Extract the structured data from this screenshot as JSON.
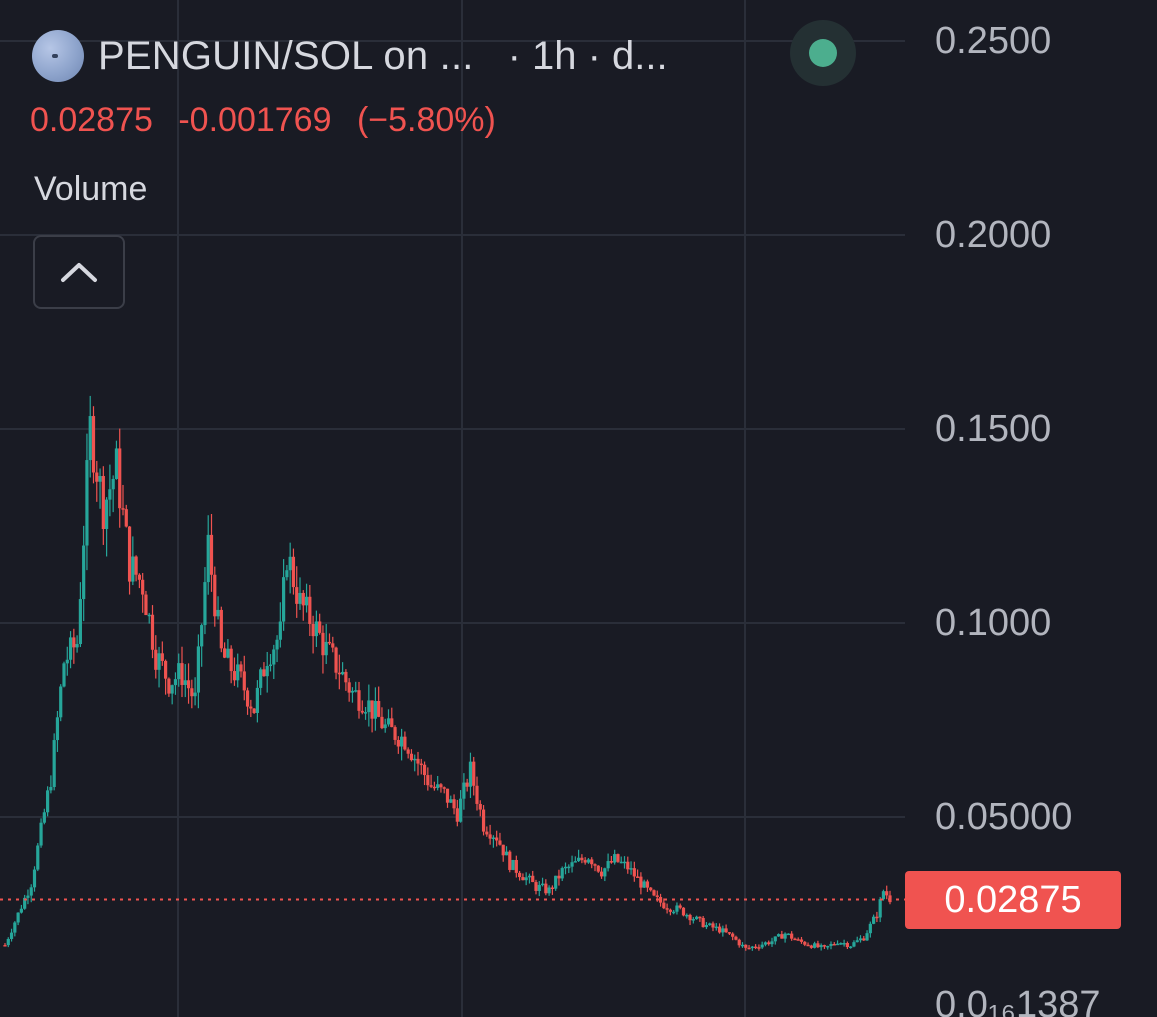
{
  "header": {
    "symbol": "PENGUIN/SOL on ...",
    "interval": "· 1h · d...",
    "live_indicator_color": "#4cae8e"
  },
  "quote": {
    "last": "0.02875",
    "change": "-0.001769",
    "change_pct": "(−5.80%)",
    "color": "#f05350"
  },
  "indicator": {
    "label": "Volume"
  },
  "price_axis": {
    "labels": [
      "0.2500",
      "0.2000",
      "0.1500",
      "0.1000",
      "0.05000",
      "0.0₁₆1387"
    ],
    "current_tag": "0.02875"
  },
  "chart_data": {
    "type": "candlestick",
    "ylim": [
      0.0,
      0.25
    ],
    "y_ticks": [
      0.25,
      0.2,
      0.15,
      0.1,
      0.05
    ],
    "current_price": 0.02875,
    "up_color": "#26a69a",
    "down_color": "#ef5350",
    "grid": true,
    "close_path": [
      [
        0,
        0.017
      ],
      [
        4,
        0.033
      ],
      [
        7,
        0.06
      ],
      [
        9,
        0.09
      ],
      [
        11,
        0.095
      ],
      [
        13,
        0.15
      ],
      [
        15,
        0.13
      ],
      [
        17,
        0.14
      ],
      [
        19,
        0.115
      ],
      [
        21,
        0.11
      ],
      [
        23,
        0.092
      ],
      [
        25,
        0.085
      ],
      [
        27,
        0.087
      ],
      [
        29,
        0.08
      ],
      [
        31,
        0.12
      ],
      [
        33,
        0.092
      ],
      [
        36,
        0.085
      ],
      [
        38,
        0.078
      ],
      [
        40,
        0.092
      ],
      [
        42,
        0.097
      ],
      [
        43,
        0.118
      ],
      [
        45,
        0.105
      ],
      [
        47,
        0.1
      ],
      [
        49,
        0.093
      ],
      [
        51,
        0.088
      ],
      [
        53,
        0.082
      ],
      [
        55,
        0.08
      ],
      [
        58,
        0.073
      ],
      [
        61,
        0.07
      ],
      [
        63,
        0.064
      ],
      [
        65,
        0.058
      ],
      [
        67,
        0.056
      ],
      [
        69,
        0.051
      ],
      [
        71,
        0.062
      ],
      [
        73,
        0.048
      ],
      [
        75,
        0.045
      ],
      [
        77,
        0.038
      ],
      [
        79,
        0.035
      ],
      [
        81,
        0.032
      ],
      [
        83,
        0.031
      ],
      [
        85,
        0.036
      ],
      [
        87,
        0.038
      ],
      [
        89,
        0.04
      ],
      [
        91,
        0.036
      ],
      [
        93,
        0.039
      ],
      [
        95,
        0.037
      ],
      [
        97,
        0.033
      ],
      [
        99,
        0.029
      ],
      [
        101,
        0.027
      ],
      [
        103,
        0.026
      ],
      [
        105,
        0.024
      ],
      [
        107,
        0.022
      ],
      [
        109,
        0.021
      ],
      [
        111,
        0.019
      ],
      [
        113,
        0.016
      ],
      [
        115,
        0.017
      ],
      [
        117,
        0.018
      ],
      [
        119,
        0.02
      ],
      [
        121,
        0.018
      ],
      [
        123,
        0.017
      ],
      [
        125,
        0.016
      ],
      [
        127,
        0.018
      ],
      [
        129,
        0.017
      ],
      [
        131,
        0.019
      ],
      [
        133,
        0.025
      ],
      [
        134,
        0.031
      ],
      [
        135,
        0.029
      ]
    ]
  }
}
